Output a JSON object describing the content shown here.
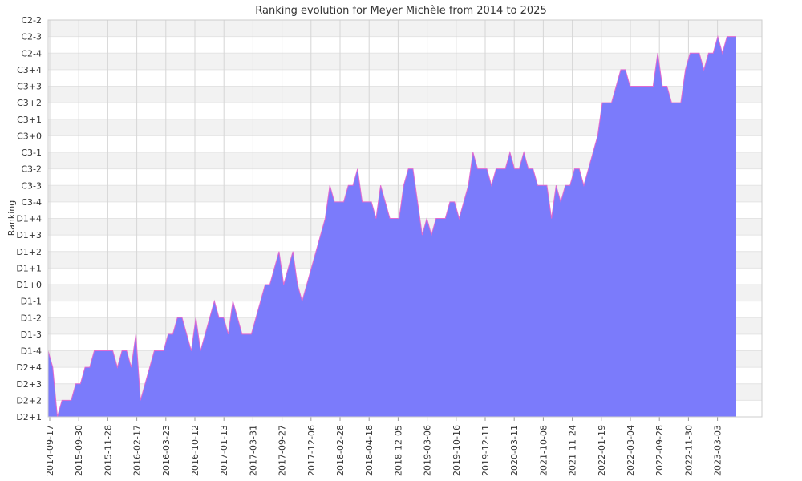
{
  "chart_data": {
    "type": "area",
    "title": "Ranking evolution for Meyer Michèle from 2014 to 2025",
    "xlabel": "",
    "ylabel": "Ranking",
    "ranks": [
      "D2+1",
      "D2+2",
      "D2+3",
      "D2+4",
      "D1-4",
      "D1-3",
      "D1-2",
      "D1-1",
      "D1+0",
      "D1+1",
      "D1+2",
      "D1+3",
      "D1+4",
      "C3-4",
      "C3-3",
      "C3-2",
      "C3-1",
      "C3+0",
      "C3+1",
      "C3+2",
      "C3+3",
      "C3+4",
      "C2-4",
      "C2-3",
      "C2-2"
    ],
    "x_tick_labels": [
      "2014-09-17",
      "2015-09-30",
      "2015-11-28",
      "2016-02-17",
      "2016-03-23",
      "2016-10-12",
      "2017-01-13",
      "2017-03-31",
      "2017-09-27",
      "2017-12-06",
      "2018-02-28",
      "2018-04-18",
      "2018-12-05",
      "2019-03-06",
      "2019-10-16",
      "2019-12-11",
      "2020-03-11",
      "2021-10-08",
      "2021-11-24",
      "2022-01-19",
      "2022-03-04",
      "2022-09-28",
      "2022-11-30",
      "2023-03-03"
    ],
    "series": [
      {
        "fill": "#7b7bfb",
        "line": "#e06ad0",
        "values": [
          4,
          3,
          0,
          1,
          1,
          1,
          2,
          2,
          3,
          3,
          4,
          4,
          4,
          4,
          4,
          3,
          4,
          4,
          3,
          5,
          1,
          2,
          3,
          4,
          4,
          4,
          5,
          5,
          6,
          6,
          5,
          4,
          6,
          4,
          5,
          6,
          7,
          6,
          6,
          5,
          7,
          6,
          5,
          5,
          5,
          6,
          7,
          8,
          8,
          9,
          10,
          8,
          9,
          10,
          8,
          7,
          8,
          9,
          10,
          11,
          12,
          14,
          13,
          13,
          13,
          14,
          14,
          15,
          13,
          13,
          13,
          12,
          14,
          13,
          12,
          12,
          12,
          14,
          15,
          15,
          13,
          11,
          12,
          11,
          12,
          12,
          12,
          13,
          13,
          12,
          13,
          14,
          16,
          15,
          15,
          15,
          14,
          15,
          15,
          15,
          16,
          15,
          15,
          16,
          15,
          15,
          14,
          14,
          14,
          12,
          14,
          13,
          14,
          14,
          15,
          15,
          14,
          15,
          16,
          17,
          19,
          19,
          19,
          20,
          21,
          21,
          20,
          20,
          20,
          20,
          20,
          20,
          22,
          20,
          20,
          19,
          19,
          19,
          21,
          22,
          22,
          22,
          21,
          22,
          22,
          23,
          22,
          23,
          23,
          23
        ]
      }
    ],
    "grid": true,
    "legend": "none"
  }
}
